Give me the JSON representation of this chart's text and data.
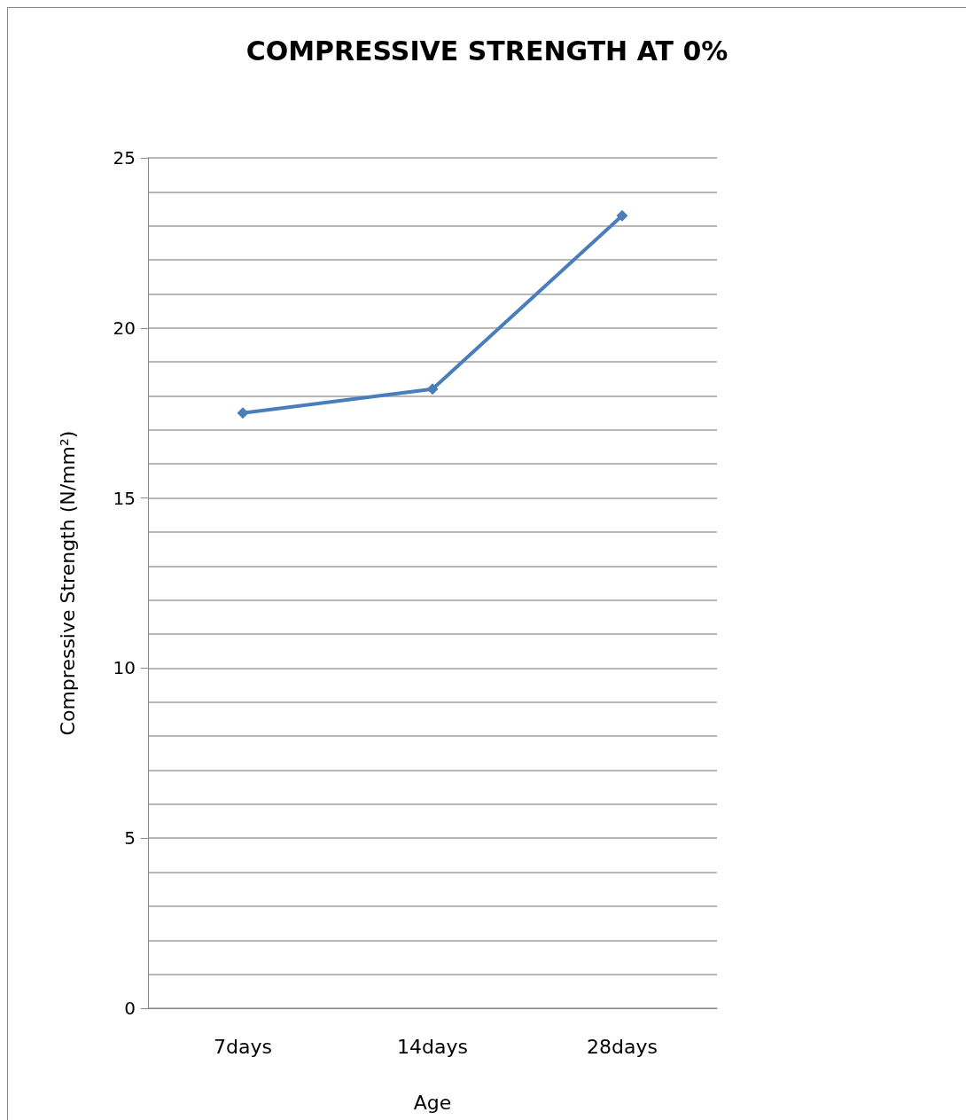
{
  "chart_data": {
    "type": "line",
    "title": "COMPRESSIVE STRENGTH AT 0%",
    "xlabel": "Age",
    "ylabel": "Compressive Strength (N/mm²)",
    "categories": [
      "7days",
      "14days",
      "28days"
    ],
    "series": [
      {
        "color": "#4a7ebb",
        "values": [
          17.5,
          18.2,
          23.3
        ]
      }
    ],
    "ylim": [
      0,
      25
    ],
    "yticks": [
      0,
      {
        "value": 1,
        "label": null
      },
      {
        "value": 2,
        "label": null
      },
      {
        "value": 3,
        "label": null
      },
      {
        "value": 4,
        "label": null
      },
      5,
      {
        "value": 6,
        "label": null
      },
      {
        "value": 7,
        "label": null
      },
      {
        "value": 8,
        "label": null
      },
      {
        "value": 9,
        "label": null
      },
      10,
      {
        "value": 11,
        "label": null
      },
      {
        "value": 12,
        "label": null
      },
      {
        "value": 13,
        "label": null
      },
      {
        "value": 14,
        "label": null
      },
      15,
      {
        "value": 16,
        "label": null
      },
      {
        "value": 17,
        "label": null
      },
      {
        "value": 18,
        "label": null
      },
      {
        "value": 19,
        "label": null
      },
      20,
      {
        "value": 21,
        "label": null
      },
      {
        "value": 22,
        "label": null
      },
      {
        "value": 23,
        "label": null
      },
      {
        "value": 24,
        "label": null
      },
      25
    ],
    "grid": "y",
    "marker": "diamond",
    "line_style": "solid"
  }
}
